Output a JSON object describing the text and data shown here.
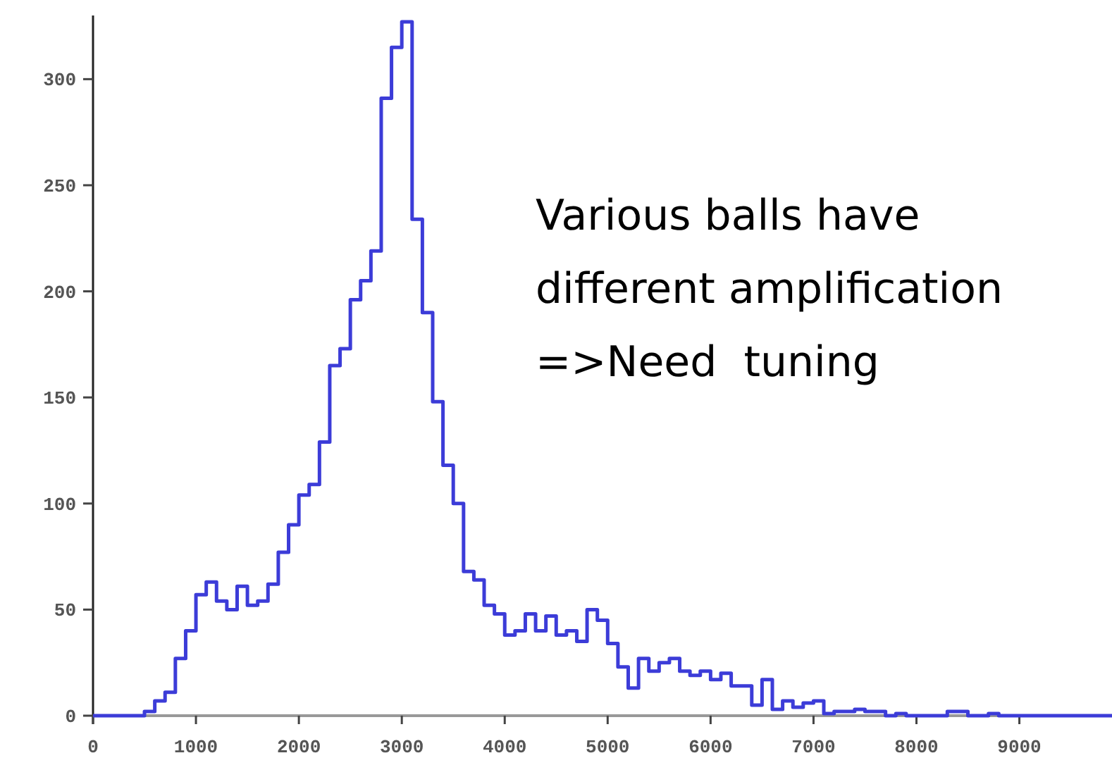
{
  "chart_data": {
    "type": "histogram",
    "bins": [
      0,
      100,
      200,
      300,
      400,
      500,
      600,
      700,
      800,
      900,
      1000,
      1100,
      1200,
      1300,
      1400,
      1500,
      1600,
      1700,
      1800,
      1900,
      2000,
      2100,
      2200,
      2300,
      2400,
      2500,
      2600,
      2700,
      2800,
      2900,
      3000,
      3100,
      3200,
      3300,
      3400,
      3500,
      3600,
      3700,
      3800,
      3900,
      4000,
      4100,
      4200,
      4300,
      4400,
      4500,
      4600,
      4700,
      4800,
      4900,
      5000,
      5100,
      5200,
      5300,
      5400,
      5500,
      5600,
      5700,
      5800,
      5900,
      6000,
      6100,
      6200,
      6300,
      6400,
      6500,
      6600,
      6700,
      6800,
      6900,
      7000,
      7100,
      7200,
      7300,
      7400,
      7500,
      7600,
      7700,
      7800,
      7900,
      8000,
      8100,
      8200,
      8300,
      8400,
      8500,
      8600,
      8700,
      8800,
      8900,
      9000,
      9100,
      9200,
      9300,
      9400,
      9500,
      9600,
      9700,
      9800,
      9900
    ],
    "values": [
      0,
      0,
      0,
      0,
      0,
      2,
      7,
      11,
      27,
      40,
      57,
      63,
      54,
      50,
      61,
      52,
      54,
      62,
      77,
      90,
      104,
      109,
      129,
      165,
      173,
      196,
      205,
      219,
      291,
      315,
      327,
      234,
      190,
      148,
      118,
      100,
      68,
      64,
      52,
      48,
      38,
      40,
      48,
      40,
      47,
      38,
      40,
      35,
      50,
      45,
      34,
      23,
      13,
      27,
      21,
      25,
      27,
      21,
      19,
      21,
      17,
      20,
      14,
      14,
      5,
      17,
      3,
      7,
      4,
      6,
      7,
      1,
      2,
      2,
      3,
      2,
      2,
      0,
      1,
      0,
      0,
      0,
      0,
      2,
      2,
      0,
      0,
      1,
      0,
      0,
      0,
      0,
      0,
      0,
      0,
      0,
      0,
      0,
      0
    ],
    "color": "#3c3cd8",
    "xlim": [
      0,
      9900
    ],
    "xticks": [
      0,
      1000,
      2000,
      3000,
      4000,
      5000,
      6000,
      7000,
      8000,
      9000
    ],
    "ylim": [
      0,
      330
    ],
    "yticks": [
      0,
      50,
      100,
      150,
      200,
      250,
      300
    ],
    "grid": false,
    "annotations": [
      "Various balls have",
      "different amplification",
      "=>Need  tuning"
    ]
  }
}
